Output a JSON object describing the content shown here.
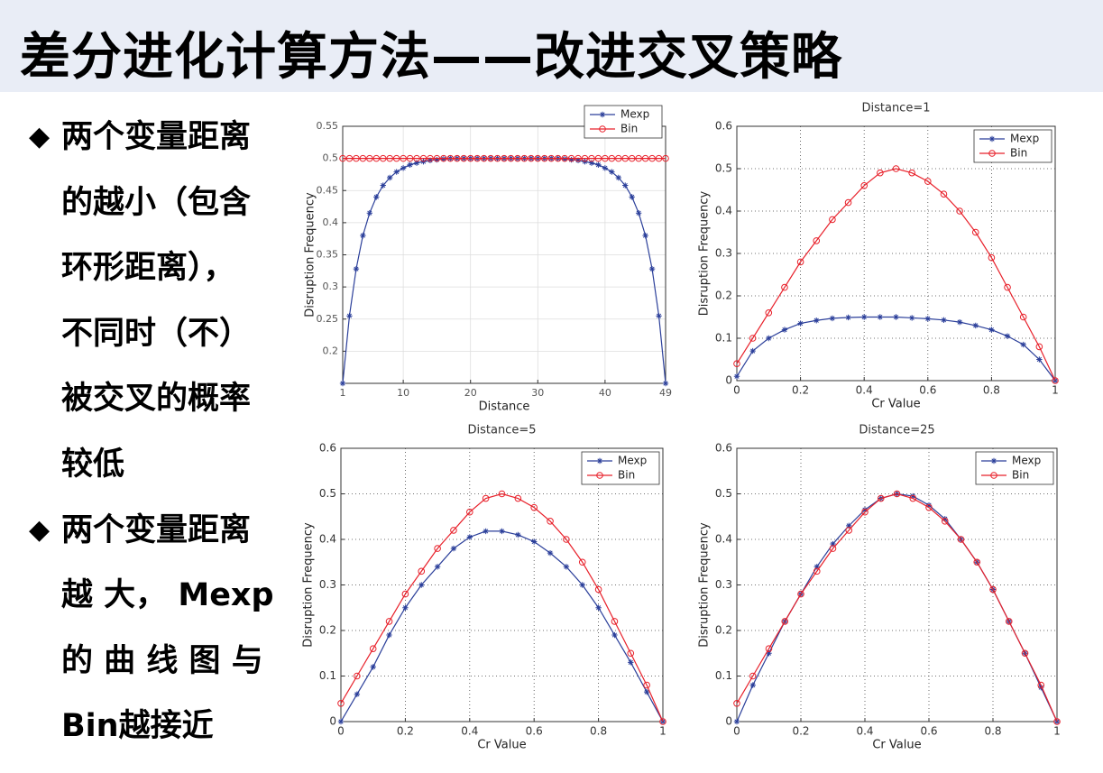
{
  "title": "差分进化计算方法——改进交叉策略",
  "bullets": [
    {
      "lines": [
        "两个变量距离",
        "的越小（包含",
        "环形距离），",
        "不同时（不）",
        "被交叉的概率",
        "较低"
      ]
    },
    {
      "lines": [
        "两个变量距离",
        "越 大， Mexp",
        "的 曲 线 图 与",
        "Bin越接近"
      ]
    }
  ],
  "chart_data": [
    {
      "type": "line",
      "xlabel": "Distance",
      "ylabel": "Disruption Frequency",
      "x": [
        1,
        2,
        3,
        4,
        5,
        6,
        7,
        8,
        9,
        10,
        11,
        12,
        13,
        14,
        15,
        16,
        17,
        18,
        19,
        20,
        21,
        22,
        23,
        24,
        25,
        26,
        27,
        28,
        29,
        30,
        31,
        32,
        33,
        34,
        35,
        36,
        37,
        38,
        39,
        40,
        41,
        42,
        43,
        44,
        45,
        46,
        47,
        48,
        49
      ],
      "series": [
        {
          "name": "Mexp",
          "color": "#2b3f9a",
          "marker": "star",
          "values": [
            0.15,
            0.255,
            0.328,
            0.38,
            0.415,
            0.44,
            0.458,
            0.47,
            0.479,
            0.485,
            0.49,
            0.493,
            0.495,
            0.497,
            0.498,
            0.499,
            0.5,
            0.5,
            0.5,
            0.5,
            0.5,
            0.5,
            0.5,
            0.5,
            0.5,
            0.5,
            0.5,
            0.5,
            0.5,
            0.5,
            0.5,
            0.5,
            0.5,
            0.499,
            0.498,
            0.497,
            0.495,
            0.493,
            0.49,
            0.485,
            0.479,
            0.47,
            0.458,
            0.44,
            0.415,
            0.38,
            0.328,
            0.255,
            0.15
          ]
        },
        {
          "name": "Bin",
          "color": "#e8202a",
          "marker": "circle",
          "values": [
            0.5,
            0.5,
            0.5,
            0.5,
            0.5,
            0.5,
            0.5,
            0.5,
            0.5,
            0.5,
            0.5,
            0.5,
            0.5,
            0.5,
            0.5,
            0.5,
            0.5,
            0.5,
            0.5,
            0.5,
            0.5,
            0.5,
            0.5,
            0.5,
            0.5,
            0.5,
            0.5,
            0.5,
            0.5,
            0.5,
            0.5,
            0.5,
            0.5,
            0.5,
            0.5,
            0.5,
            0.5,
            0.5,
            0.5,
            0.5,
            0.5,
            0.5,
            0.5,
            0.5,
            0.5,
            0.5,
            0.5,
            0.5,
            0.5
          ]
        }
      ],
      "xlim": [
        1,
        49
      ],
      "xticks": [
        1,
        10,
        20,
        30,
        40,
        49
      ],
      "ylim": [
        0.15,
        0.55
      ],
      "yticks": [
        0.2,
        0.25,
        0.3,
        0.35,
        0.4,
        0.45,
        0.5,
        0.55
      ],
      "grid": true,
      "grid_style": "solid",
      "legend": "upper right"
    },
    {
      "type": "line",
      "title": "Distance=1",
      "xlabel": "Cr Value",
      "ylabel": "Disruption Frequency",
      "x": [
        0,
        0.05,
        0.1,
        0.15,
        0.2,
        0.25,
        0.3,
        0.35,
        0.4,
        0.45,
        0.5,
        0.55,
        0.6,
        0.65,
        0.7,
        0.75,
        0.8,
        0.85,
        0.9,
        0.95,
        1
      ],
      "series": [
        {
          "name": "Mexp",
          "color": "#2b3f9a",
          "marker": "star",
          "values": [
            0.01,
            0.07,
            0.1,
            0.12,
            0.135,
            0.142,
            0.147,
            0.149,
            0.15,
            0.15,
            0.15,
            0.148,
            0.146,
            0.143,
            0.138,
            0.13,
            0.12,
            0.105,
            0.085,
            0.05,
            0
          ]
        },
        {
          "name": "Bin",
          "color": "#e8202a",
          "marker": "circle",
          "values": [
            0.04,
            0.1,
            0.16,
            0.22,
            0.28,
            0.33,
            0.38,
            0.42,
            0.46,
            0.49,
            0.5,
            0.49,
            0.47,
            0.44,
            0.4,
            0.35,
            0.29,
            0.22,
            0.15,
            0.08,
            0
          ]
        }
      ],
      "xlim": [
        0,
        1
      ],
      "xticks": [
        0,
        0.2,
        0.4,
        0.6,
        0.8,
        1
      ],
      "ylim": [
        0,
        0.6
      ],
      "yticks": [
        0,
        0.1,
        0.2,
        0.3,
        0.4,
        0.5,
        0.6
      ],
      "grid": true,
      "grid_style": "dotted",
      "legend": "upper right"
    },
    {
      "type": "line",
      "title": "Distance=5",
      "xlabel": "Cr Value",
      "ylabel": "Disruption Frequency",
      "x": [
        0,
        0.05,
        0.1,
        0.15,
        0.2,
        0.25,
        0.3,
        0.35,
        0.4,
        0.45,
        0.5,
        0.55,
        0.6,
        0.65,
        0.7,
        0.75,
        0.8,
        0.85,
        0.9,
        0.95,
        1
      ],
      "series": [
        {
          "name": "Mexp",
          "color": "#2b3f9a",
          "marker": "star",
          "values": [
            0,
            0.06,
            0.12,
            0.19,
            0.25,
            0.3,
            0.34,
            0.38,
            0.405,
            0.418,
            0.418,
            0.41,
            0.395,
            0.37,
            0.34,
            0.3,
            0.25,
            0.19,
            0.13,
            0.065,
            0
          ]
        },
        {
          "name": "Bin",
          "color": "#e8202a",
          "marker": "circle",
          "values": [
            0.04,
            0.1,
            0.16,
            0.22,
            0.28,
            0.33,
            0.38,
            0.42,
            0.46,
            0.49,
            0.5,
            0.49,
            0.47,
            0.44,
            0.4,
            0.35,
            0.29,
            0.22,
            0.15,
            0.08,
            0
          ]
        }
      ],
      "xlim": [
        0,
        1
      ],
      "xticks": [
        0,
        0.2,
        0.4,
        0.6,
        0.8,
        1
      ],
      "ylim": [
        0,
        0.6
      ],
      "yticks": [
        0,
        0.1,
        0.2,
        0.3,
        0.4,
        0.5,
        0.6
      ],
      "grid": true,
      "grid_style": "dotted",
      "legend": "upper right"
    },
    {
      "type": "line",
      "title": "Distance=25",
      "xlabel": "Cr Value",
      "ylabel": "Disruption Frequency",
      "x": [
        0,
        0.05,
        0.1,
        0.15,
        0.2,
        0.25,
        0.3,
        0.35,
        0.4,
        0.45,
        0.5,
        0.55,
        0.6,
        0.65,
        0.7,
        0.75,
        0.8,
        0.85,
        0.9,
        0.95,
        1
      ],
      "series": [
        {
          "name": "Mexp",
          "color": "#2b3f9a",
          "marker": "star",
          "values": [
            0,
            0.08,
            0.15,
            0.22,
            0.28,
            0.34,
            0.39,
            0.43,
            0.465,
            0.49,
            0.5,
            0.495,
            0.475,
            0.445,
            0.4,
            0.35,
            0.29,
            0.22,
            0.15,
            0.075,
            0
          ]
        },
        {
          "name": "Bin",
          "color": "#e8202a",
          "marker": "circle",
          "values": [
            0.04,
            0.1,
            0.16,
            0.22,
            0.28,
            0.33,
            0.38,
            0.42,
            0.46,
            0.49,
            0.5,
            0.49,
            0.47,
            0.44,
            0.4,
            0.35,
            0.29,
            0.22,
            0.15,
            0.08,
            0
          ]
        }
      ],
      "xlim": [
        0,
        1
      ],
      "xticks": [
        0,
        0.2,
        0.4,
        0.6,
        0.8,
        1
      ],
      "ylim": [
        0,
        0.6
      ],
      "yticks": [
        0,
        0.1,
        0.2,
        0.3,
        0.4,
        0.5,
        0.6
      ],
      "grid": true,
      "grid_style": "dotted",
      "legend": "upper right"
    }
  ]
}
